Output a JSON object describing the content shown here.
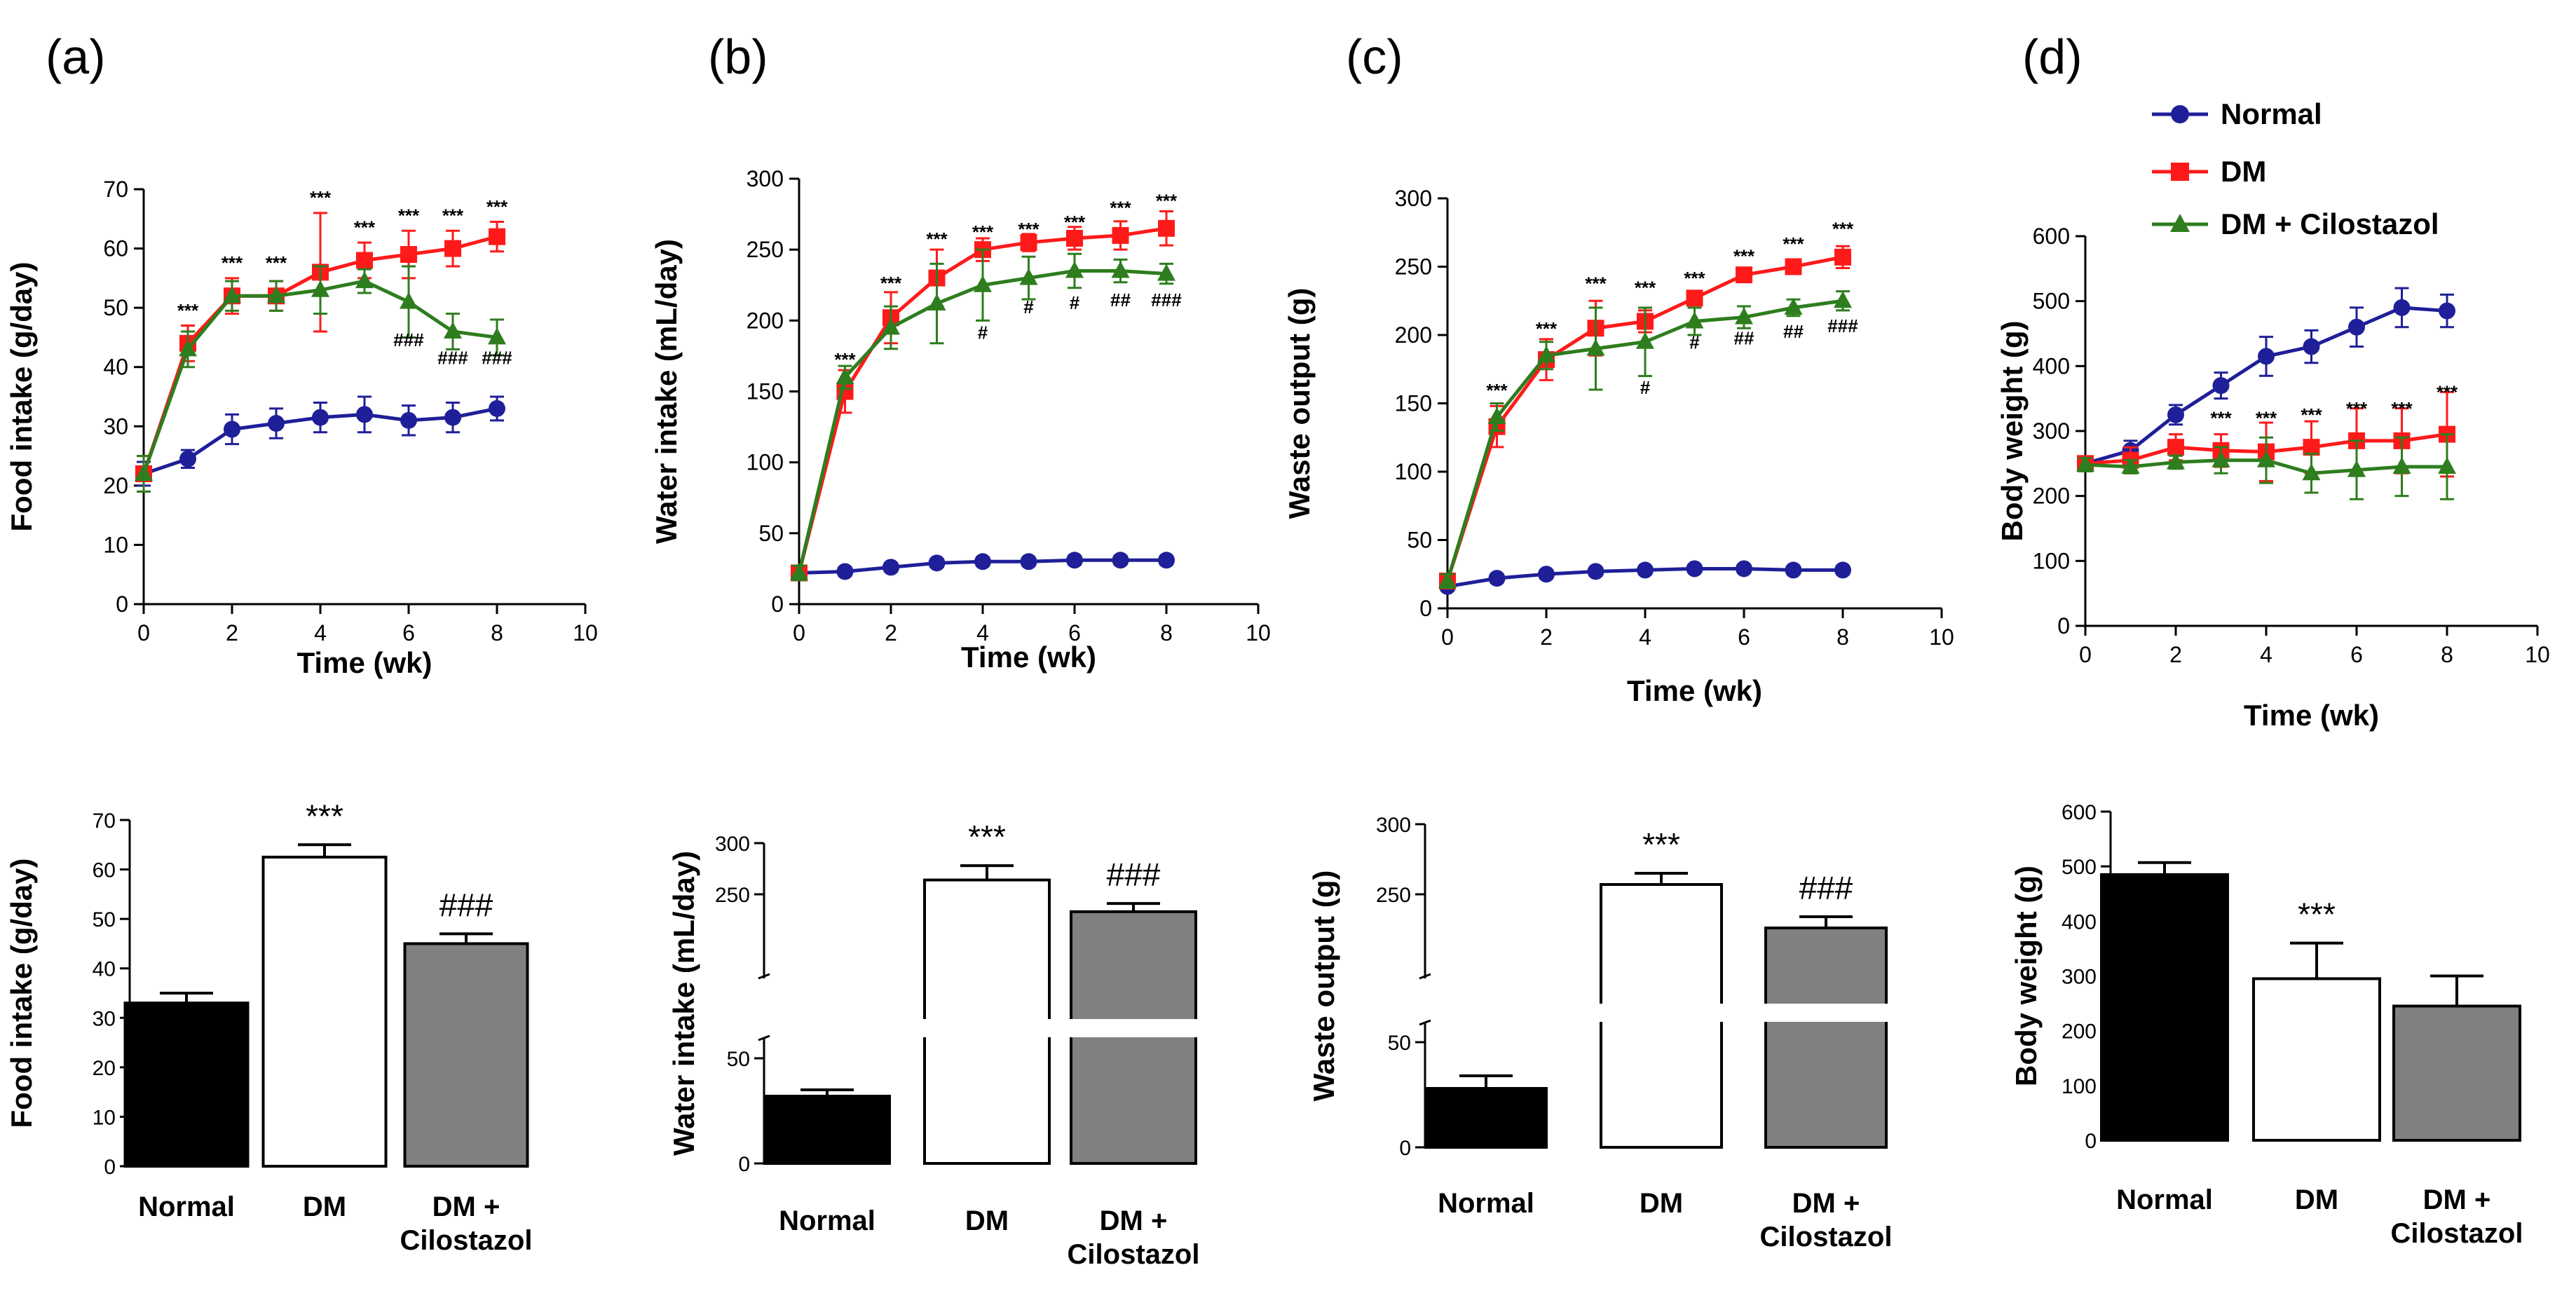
{
  "figure": {
    "legend": [
      {
        "name": "Normal",
        "color": "#1f1f99",
        "marker": "circle"
      },
      {
        "name": "DM",
        "color": "#ff1a1a",
        "marker": "square"
      },
      {
        "name": "DM + Cilostazol",
        "color": "#2e7d1e",
        "marker": "triangle"
      }
    ],
    "colors": {
      "normal": "#1f1f99",
      "dm": "#ff1a1a",
      "dmc": "#2e7d1e",
      "bar_normal": "#000000",
      "bar_dm": "#ffffff",
      "bar_dmc": "#808080"
    }
  },
  "chart_data": [
    {
      "panel": "(a)",
      "type": "line",
      "ylabel": "Food intake (g/day)",
      "xlabel": "Time (wk)",
      "xlim": [
        0,
        10
      ],
      "ylim": [
        0,
        70
      ],
      "xticks": [
        0,
        2,
        4,
        6,
        8,
        10
      ],
      "yticks": [
        0,
        10,
        20,
        30,
        40,
        50,
        60,
        70
      ],
      "x": [
        0,
        1,
        2,
        3,
        4,
        5,
        6,
        7,
        8
      ],
      "series": [
        {
          "name": "Normal",
          "values": [
            22,
            24.5,
            29.5,
            30.5,
            31.5,
            32,
            31,
            31.5,
            33
          ],
          "errors": [
            2,
            1.5,
            2.5,
            2.5,
            2.5,
            3,
            2.5,
            2.5,
            2
          ]
        },
        {
          "name": "DM",
          "values": [
            22,
            44,
            52,
            52,
            56,
            58,
            59,
            60,
            62
          ],
          "errors": [
            3,
            3,
            3,
            2.5,
            10,
            3,
            4,
            3,
            2.5
          ]
        },
        {
          "name": "DM + Cilostazol",
          "values": [
            22,
            43,
            52,
            52,
            53,
            54.5,
            51,
            46,
            45
          ],
          "errors": [
            3,
            3,
            2.5,
            2.5,
            4,
            2,
            6,
            3,
            3
          ]
        }
      ],
      "annotations": [
        {
          "x": 1,
          "y": 48.5,
          "text": "***"
        },
        {
          "x": 2,
          "y": 56.5,
          "text": "***"
        },
        {
          "x": 3,
          "y": 56.5,
          "text": "***"
        },
        {
          "x": 4,
          "y": 67.5,
          "text": "***"
        },
        {
          "x": 5,
          "y": 62.5,
          "text": "***"
        },
        {
          "x": 6,
          "y": 64.5,
          "text": "***"
        },
        {
          "x": 7,
          "y": 64.5,
          "text": "***"
        },
        {
          "x": 8,
          "y": 66,
          "text": "***"
        },
        {
          "x": 6,
          "y": 43.5,
          "text": "###"
        },
        {
          "x": 7,
          "y": 40.5,
          "text": "###"
        },
        {
          "x": 8,
          "y": 40.5,
          "text": "###"
        }
      ]
    },
    {
      "panel": "(b)",
      "type": "line",
      "ylabel": "Water intake (mL/day)",
      "xlabel": "Time (wk)",
      "xlim": [
        0,
        10
      ],
      "ylim": [
        0,
        300
      ],
      "xticks": [
        0,
        2,
        4,
        6,
        8,
        10
      ],
      "yticks": [
        0,
        50,
        100,
        150,
        200,
        250,
        300
      ],
      "x": [
        0,
        1,
        2,
        3,
        4,
        5,
        6,
        7,
        8
      ],
      "series": [
        {
          "name": "Normal",
          "values": [
            22,
            23,
            26,
            29,
            30,
            30,
            31,
            31,
            31
          ],
          "errors": [
            3,
            3,
            3,
            3,
            3,
            3,
            3,
            3,
            3
          ]
        },
        {
          "name": "DM",
          "values": [
            22,
            150,
            202,
            230,
            250,
            255,
            258,
            260,
            265
          ],
          "errors": [
            5,
            15,
            18,
            20,
            8,
            6,
            8,
            10,
            12
          ]
        },
        {
          "name": "DM + Cilostazol",
          "values": [
            22,
            160,
            195,
            212,
            225,
            230,
            235,
            235,
            233
          ],
          "errors": [
            5,
            8,
            15,
            28,
            25,
            15,
            12,
            8,
            7
          ]
        }
      ],
      "annotations": [
        {
          "x": 1,
          "y": 168,
          "text": "***"
        },
        {
          "x": 2,
          "y": 222,
          "text": "***"
        },
        {
          "x": 3,
          "y": 253,
          "text": "***"
        },
        {
          "x": 4,
          "y": 258,
          "text": "***"
        },
        {
          "x": 5,
          "y": 260,
          "text": "***"
        },
        {
          "x": 6,
          "y": 265,
          "text": "***"
        },
        {
          "x": 7,
          "y": 275,
          "text": "***"
        },
        {
          "x": 8,
          "y": 280,
          "text": "***"
        },
        {
          "x": 4,
          "y": 187,
          "text": "#"
        },
        {
          "x": 5,
          "y": 205,
          "text": "#"
        },
        {
          "x": 6,
          "y": 208,
          "text": "#"
        },
        {
          "x": 7,
          "y": 210,
          "text": "##"
        },
        {
          "x": 8,
          "y": 210,
          "text": "###"
        }
      ]
    },
    {
      "panel": "(c)",
      "type": "line",
      "ylabel": "Waste output (g)",
      "xlabel": "Time (wk)",
      "xlim": [
        0,
        10
      ],
      "ylim": [
        0,
        300
      ],
      "xticks": [
        0,
        2,
        4,
        6,
        8,
        10
      ],
      "yticks": [
        0,
        50,
        100,
        150,
        200,
        250,
        300
      ],
      "x": [
        0,
        1,
        2,
        3,
        4,
        5,
        6,
        7,
        8
      ],
      "series": [
        {
          "name": "Normal",
          "values": [
            16,
            22,
            25,
            27,
            28,
            29,
            29,
            28,
            28
          ],
          "errors": [
            3,
            3,
            3,
            3,
            3,
            3,
            3,
            3,
            3
          ]
        },
        {
          "name": "DM",
          "values": [
            20,
            133,
            182,
            205,
            210,
            227,
            244,
            250,
            257
          ],
          "errors": [
            5,
            15,
            15,
            20,
            8,
            5,
            5,
            5,
            8
          ]
        },
        {
          "name": "DM + Cilostazol",
          "values": [
            20,
            140,
            185,
            190,
            195,
            210,
            213,
            220,
            225
          ],
          "errors": [
            5,
            10,
            10,
            30,
            25,
            10,
            8,
            6,
            7
          ]
        }
      ],
      "annotations": [
        {
          "x": 1,
          "y": 155,
          "text": "***"
        },
        {
          "x": 2,
          "y": 200,
          "text": "***"
        },
        {
          "x": 3,
          "y": 233,
          "text": "***"
        },
        {
          "x": 4,
          "y": 230,
          "text": "***"
        },
        {
          "x": 5,
          "y": 237,
          "text": "***"
        },
        {
          "x": 6,
          "y": 253,
          "text": "***"
        },
        {
          "x": 7,
          "y": 262,
          "text": "***"
        },
        {
          "x": 8,
          "y": 273,
          "text": "***"
        },
        {
          "x": 4,
          "y": 157,
          "text": "#"
        },
        {
          "x": 5,
          "y": 190,
          "text": "#"
        },
        {
          "x": 6,
          "y": 193,
          "text": "##"
        },
        {
          "x": 7,
          "y": 198,
          "text": "##"
        },
        {
          "x": 8,
          "y": 202,
          "text": "###"
        }
      ]
    },
    {
      "panel": "(d)",
      "type": "line",
      "ylabel": "Body weight (g)",
      "xlabel": "Time (wk)",
      "xlim": [
        0,
        10
      ],
      "ylim": [
        0,
        600
      ],
      "xticks": [
        0,
        2,
        4,
        6,
        8,
        10
      ],
      "yticks": [
        0,
        100,
        200,
        300,
        400,
        500,
        600
      ],
      "x": [
        0,
        1,
        2,
        3,
        4,
        5,
        6,
        7,
        8
      ],
      "series": [
        {
          "name": "Normal",
          "values": [
            250,
            270,
            325,
            370,
            415,
            430,
            460,
            490,
            485
          ],
          "errors": [
            10,
            15,
            15,
            20,
            30,
            25,
            30,
            30,
            25
          ]
        },
        {
          "name": "DM",
          "values": [
            250,
            255,
            275,
            270,
            268,
            275,
            285,
            285,
            295
          ],
          "errors": [
            10,
            20,
            20,
            25,
            45,
            40,
            50,
            50,
            65
          ]
        },
        {
          "name": "DM + Cilostazol",
          "values": [
            248,
            245,
            252,
            255,
            255,
            235,
            240,
            245,
            245
          ],
          "errors": [
            10,
            10,
            10,
            20,
            35,
            30,
            45,
            45,
            50
          ]
        }
      ],
      "annotations": [
        {
          "x": 3,
          "y": 310,
          "text": "***"
        },
        {
          "x": 4,
          "y": 310,
          "text": "***"
        },
        {
          "x": 5,
          "y": 315,
          "text": "***"
        },
        {
          "x": 6,
          "y": 325,
          "text": "***"
        },
        {
          "x": 7,
          "y": 325,
          "text": "***"
        },
        {
          "x": 8,
          "y": 350,
          "text": "***"
        }
      ]
    },
    {
      "panel": "(a) bar",
      "type": "bar",
      "ylabel": "Food intake (g/day)",
      "ylim": [
        0,
        70
      ],
      "yticks": [
        0,
        10,
        20,
        30,
        40,
        50,
        60,
        70
      ],
      "categories": [
        "Normal",
        "DM",
        "DM +\nCilostazol"
      ],
      "values": [
        33,
        62.5,
        45
      ],
      "errors": [
        2,
        2.5,
        2
      ],
      "annotations": [
        "",
        "***",
        "###"
      ]
    },
    {
      "panel": "(b) bar",
      "type": "bar",
      "ylabel": "Water intake (mL/day)",
      "broken_axis": [
        50,
        225
      ],
      "ylim": [
        0,
        300
      ],
      "yticks": [
        0,
        50,
        250,
        300
      ],
      "categories": [
        "Normal",
        "DM",
        "DM +\nCilostazol"
      ],
      "values": [
        32,
        264,
        233
      ],
      "errors": [
        3,
        14,
        8
      ],
      "annotations": [
        "",
        "***",
        "###"
      ]
    },
    {
      "panel": "(c) bar",
      "type": "bar",
      "ylabel": "Waste output (g)",
      "broken_axis": [
        50,
        225
      ],
      "ylim": [
        0,
        300
      ],
      "yticks": [
        0,
        50,
        250,
        300
      ],
      "categories": [
        "Normal",
        "DM",
        "DM +\nCilostazol"
      ],
      "values": [
        28,
        257,
        226
      ],
      "errors": [
        6,
        8,
        8
      ],
      "annotations": [
        "",
        "***",
        "###"
      ]
    },
    {
      "panel": "(d) bar",
      "type": "bar",
      "ylabel": "Body weight (g)",
      "ylim": [
        0,
        600
      ],
      "yticks": [
        0,
        100,
        200,
        300,
        400,
        500,
        600
      ],
      "categories": [
        "Normal",
        "DM",
        "DM +\nCilostazol"
      ],
      "values": [
        485,
        295,
        245
      ],
      "errors": [
        22,
        65,
        55
      ],
      "annotations": [
        "",
        "***",
        ""
      ]
    }
  ]
}
